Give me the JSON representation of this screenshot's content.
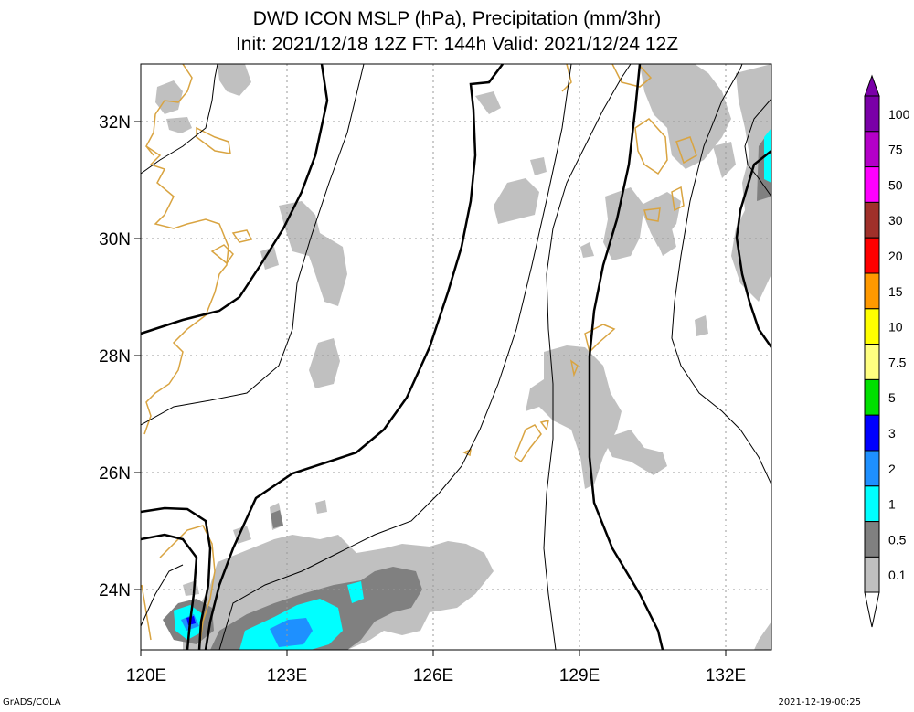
{
  "title": {
    "line1": "DWD ICON MSLP (hPa), Precipitation (mm/3hr)",
    "line2": "Init: 2021/12/18 12Z  FT: 144h  Valid: 2021/12/24 12Z"
  },
  "axes": {
    "lat_labels": [
      "32N",
      "30N",
      "28N",
      "26N",
      "24N"
    ],
    "lon_labels": [
      "120E",
      "123E",
      "126E",
      "129E",
      "132E"
    ]
  },
  "colorbar": {
    "levels": [
      "100",
      "75",
      "50",
      "30",
      "20",
      "15",
      "10",
      "7.5",
      "5",
      "3",
      "2",
      "1",
      "0.5",
      "0.1"
    ],
    "colors": [
      "#7a00a8",
      "#b400c8",
      "#ff00ff",
      "#a0302a",
      "#ff0000",
      "#ff9900",
      "#ffff00",
      "#ffff80",
      "#00e000",
      "#0000ff",
      "#1e90ff",
      "#00ffff",
      "#808080",
      "#c0c0c0",
      "#ffffff"
    ]
  },
  "colors": {
    "coast": "#d9a441",
    "precip_light": "#c0c0c0",
    "precip_mid": "#808080",
    "precip_cyan": "#00ffff",
    "precip_blue": "#1e90ff"
  },
  "footer": {
    "left": "GrADS/COLA",
    "right": "2021-12-19-00:25"
  }
}
